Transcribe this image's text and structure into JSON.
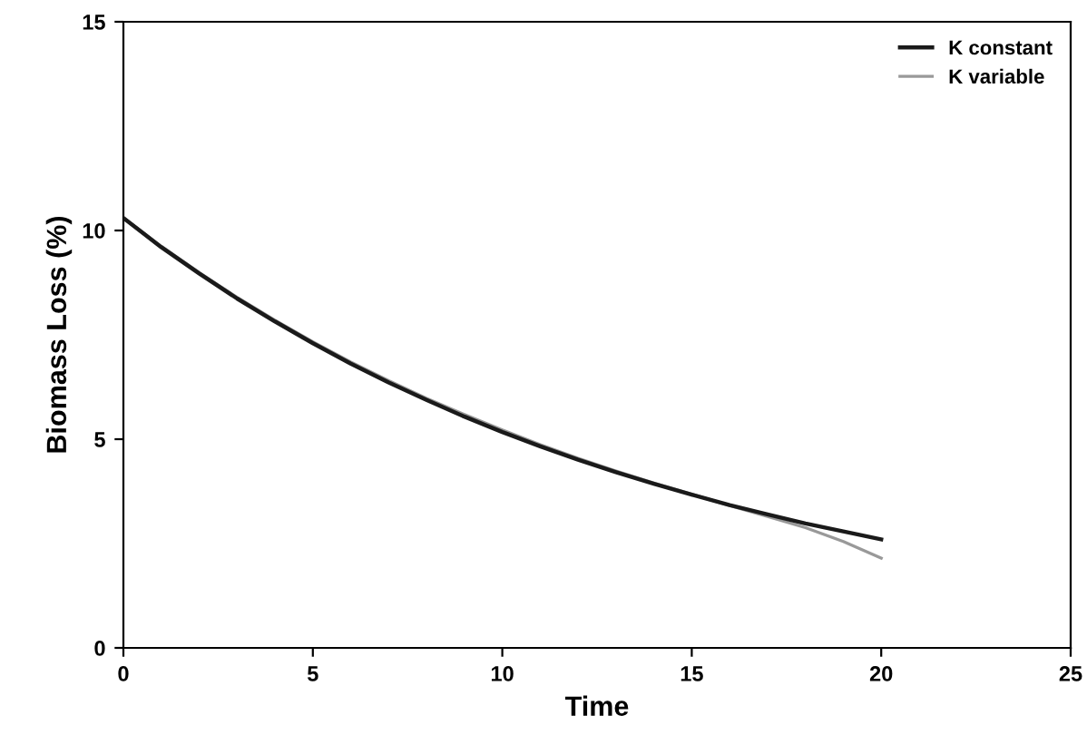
{
  "chart_data": {
    "type": "line",
    "xlabel": "Time",
    "ylabel": "Biomass Loss (%)",
    "xlim": [
      0,
      25
    ],
    "xticks": [
      0,
      5,
      10,
      15,
      20,
      25
    ],
    "ylim": [
      0,
      15
    ],
    "yticks": [
      0,
      5,
      10,
      15
    ],
    "x": [
      0,
      1,
      2,
      3,
      4,
      5,
      6,
      7,
      8,
      9,
      10,
      11,
      12,
      13,
      14,
      15,
      16,
      17,
      18,
      19,
      20
    ],
    "series": [
      {
        "name": "K constant",
        "color": "#1a1a1a",
        "values": [
          10.3,
          9.6,
          8.97,
          8.37,
          7.82,
          7.3,
          6.81,
          6.36,
          5.94,
          5.54,
          5.17,
          4.83,
          4.51,
          4.21,
          3.93,
          3.67,
          3.42,
          3.2,
          2.98,
          2.79,
          2.6
        ]
      },
      {
        "name": "K variable",
        "color": "#999999",
        "values": [
          10.3,
          9.62,
          8.99,
          8.4,
          7.85,
          7.33,
          6.85,
          6.4,
          5.98,
          5.59,
          5.22,
          4.87,
          4.54,
          4.24,
          3.95,
          3.68,
          3.41,
          3.15,
          2.88,
          2.55,
          2.15
        ]
      }
    ],
    "legend": "top right",
    "grid": false,
    "marker": "none",
    "line_style": "solid"
  }
}
